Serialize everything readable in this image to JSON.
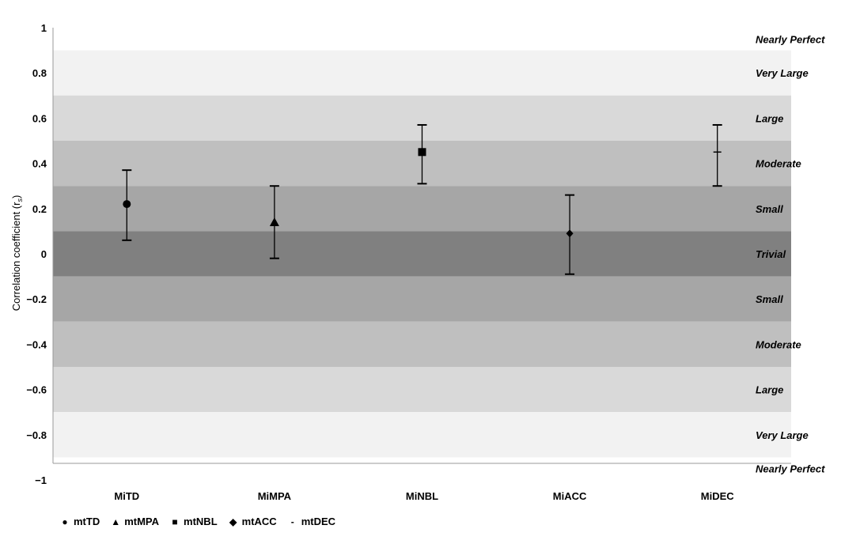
{
  "chart_data": {
    "type": "scatter",
    "title": "",
    "xlabel": "",
    "ylabel": "Correlation coefficient (r",
    "ylabel_sub": "s",
    "ylabel_end": ")",
    "ylim": [
      -1,
      1
    ],
    "y_ticks": [
      "1",
      "0.8",
      "0.6",
      "0.4",
      "0.2",
      "0",
      "−0.2",
      "−0.4",
      "−0.6",
      "−0.8",
      "−1"
    ],
    "y_tick_values": [
      1,
      0.8,
      0.6,
      0.4,
      0.2,
      0,
      -0.2,
      -0.4,
      -0.6,
      -0.8,
      -1
    ],
    "categories": [
      "MiTD",
      "MiMPA",
      "MiNBL",
      "MiACC",
      "MiDEC"
    ],
    "bands": [
      {
        "label": "Nearly Perfect",
        "from": 0.9,
        "to": 1.0,
        "color": "#ffffff"
      },
      {
        "label": "Very Large",
        "from": 0.7,
        "to": 0.9,
        "color": "#f2f2f2"
      },
      {
        "label": "Large",
        "from": 0.5,
        "to": 0.7,
        "color": "#d9d9d9"
      },
      {
        "label": "Moderate",
        "from": 0.3,
        "to": 0.5,
        "color": "#bfbfbf"
      },
      {
        "label": "Small",
        "from": 0.1,
        "to": 0.3,
        "color": "#a6a6a6"
      },
      {
        "label": "Trivial",
        "from": -0.1,
        "to": 0.1,
        "color": "#808080"
      },
      {
        "label": "Small",
        "from": -0.3,
        "to": -0.1,
        "color": "#a6a6a6"
      },
      {
        "label": "Moderate",
        "from": -0.5,
        "to": -0.3,
        "color": "#bfbfbf"
      },
      {
        "label": "Large",
        "from": -0.7,
        "to": -0.5,
        "color": "#d9d9d9"
      },
      {
        "label": "Very Large",
        "from": -0.9,
        "to": -0.7,
        "color": "#f2f2f2"
      },
      {
        "label": "Nearly Perfect",
        "from": -1.0,
        "to": -0.9,
        "color": "#ffffff"
      }
    ],
    "series": [
      {
        "name": "mtTD",
        "marker": "circle",
        "value": 0.22,
        "lower": 0.06,
        "upper": 0.37
      },
      {
        "name": "mtMPA",
        "marker": "triangle",
        "value": 0.14,
        "lower": -0.02,
        "upper": 0.3
      },
      {
        "name": "mtNBL",
        "marker": "square",
        "value": 0.45,
        "lower": 0.31,
        "upper": 0.57
      },
      {
        "name": "mtACC",
        "marker": "diamond",
        "value": 0.09,
        "lower": -0.09,
        "upper": 0.26
      },
      {
        "name": "mtDEC",
        "marker": "dash",
        "value": 0.45,
        "lower": 0.3,
        "upper": 0.57
      }
    ],
    "legend_position": "bottom-left",
    "legend_glyphs": {
      "circle": "●",
      "triangle": "▲",
      "square": "■",
      "diamond": "◆",
      "dash": "-"
    },
    "grid": false
  }
}
